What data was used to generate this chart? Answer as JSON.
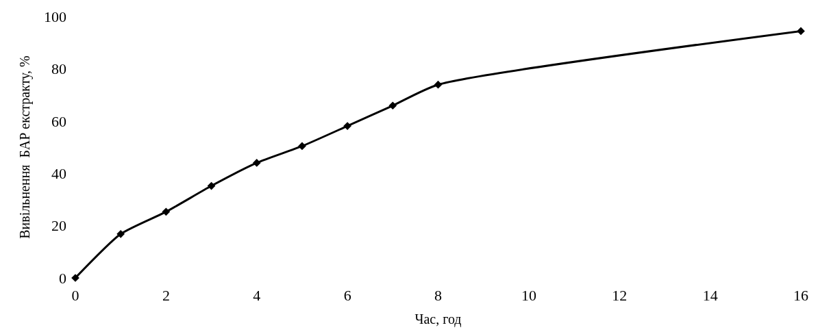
{
  "chart_data": {
    "type": "line",
    "xlabel": "Час, год",
    "ylabel": "Вивільнення  БАР екстракту, %",
    "x": [
      0,
      1,
      2,
      3,
      4,
      5,
      6,
      7,
      8,
      16
    ],
    "series": [
      {
        "color": "#000000",
        "values": [
          0,
          16.8,
          25.3,
          35.2,
          44,
          50.4,
          58.1,
          65.9,
          73.9,
          94.4
        ]
      }
    ],
    "xlim": [
      0,
      16
    ],
    "xticks": [
      0,
      2,
      4,
      6,
      8,
      10,
      12,
      14,
      16
    ],
    "ylim": [
      0,
      100
    ],
    "yticks": [
      0,
      20,
      40,
      60,
      80,
      100
    ],
    "legend": false,
    "marker": "diamond",
    "line_style": "solid"
  }
}
